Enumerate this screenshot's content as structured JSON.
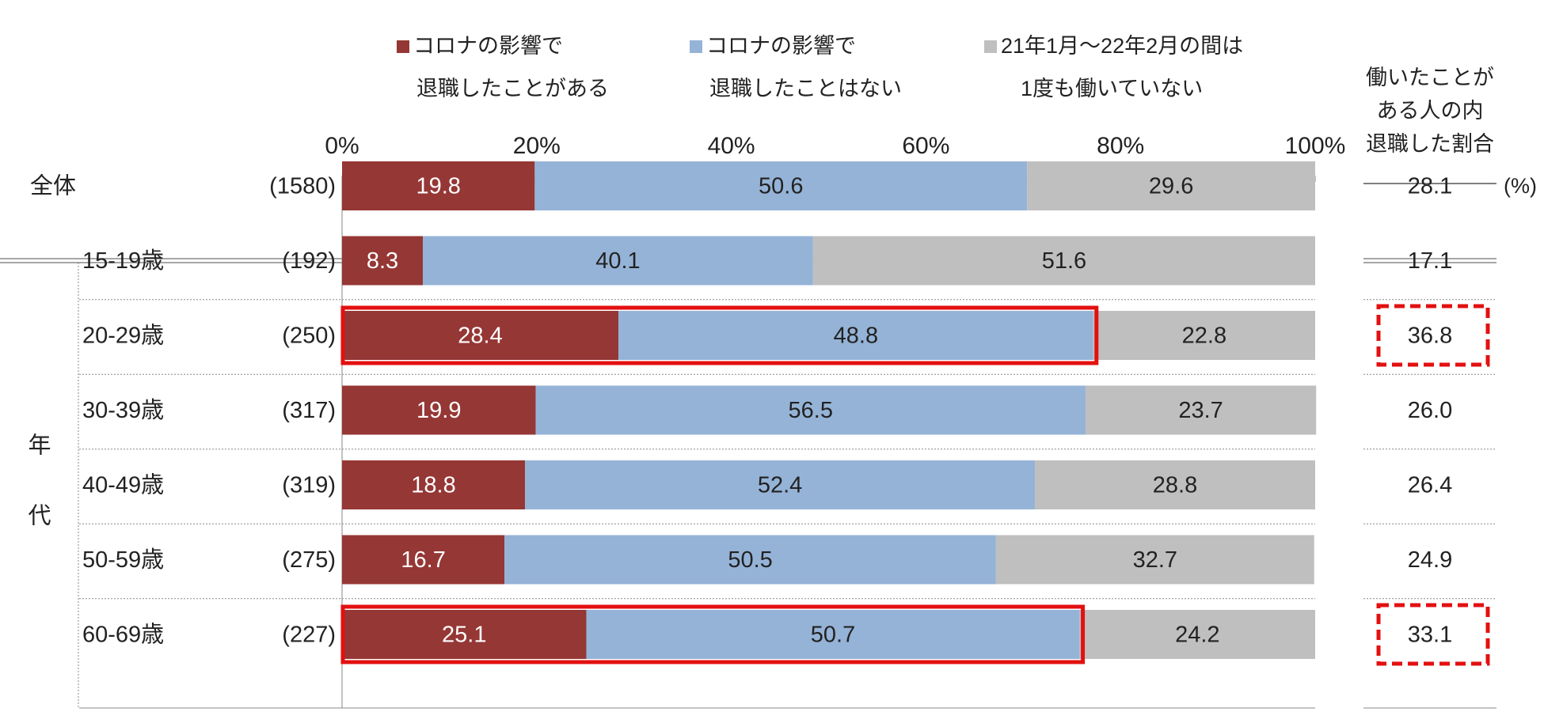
{
  "chart_data": {
    "type": "bar",
    "stacked": true,
    "orientation": "horizontal",
    "xlim": [
      0,
      100
    ],
    "x_ticks": [
      "0%",
      "20%",
      "40%",
      "60%",
      "80%",
      "100%"
    ],
    "unit_note": "(%)",
    "legend": [
      {
        "lines": [
          "コロナの影響で",
          "退職したことがある"
        ],
        "color": "#953735"
      },
      {
        "lines": [
          "コロナの影響で",
          "退職したことはない"
        ],
        "color": "#95b3d7"
      },
      {
        "lines": [
          "21年1月～22年2月の間は",
          "1度も働いていない"
        ],
        "color": "#bfbfbf"
      }
    ],
    "right_header": [
      "働いたことが",
      "ある人の内",
      "退職した割合"
    ],
    "group_label": [
      "年",
      "代"
    ],
    "categories": [
      "全体",
      "15-19歳",
      "20-29歳",
      "30-39歳",
      "40-49歳",
      "50-59歳",
      "60-69歳"
    ],
    "n": [
      "(1580)",
      "(192)",
      "(250)",
      "(317)",
      "(319)",
      "(275)",
      "(227)"
    ],
    "series": [
      {
        "values": [
          19.8,
          8.3,
          28.4,
          19.9,
          18.8,
          16.7,
          25.1
        ],
        "color": "#953735"
      },
      {
        "values": [
          50.6,
          40.1,
          48.8,
          56.5,
          52.4,
          50.5,
          50.7
        ],
        "color": "#95b3d7"
      },
      {
        "values": [
          29.6,
          51.6,
          22.8,
          23.7,
          28.8,
          32.7,
          24.2
        ],
        "color": "#bfbfbf"
      }
    ],
    "right_values": [
      "28.1",
      "17.1",
      "36.8",
      "26.0",
      "26.4",
      "24.9",
      "33.1"
    ],
    "highlight_rows": [
      2,
      6
    ]
  }
}
